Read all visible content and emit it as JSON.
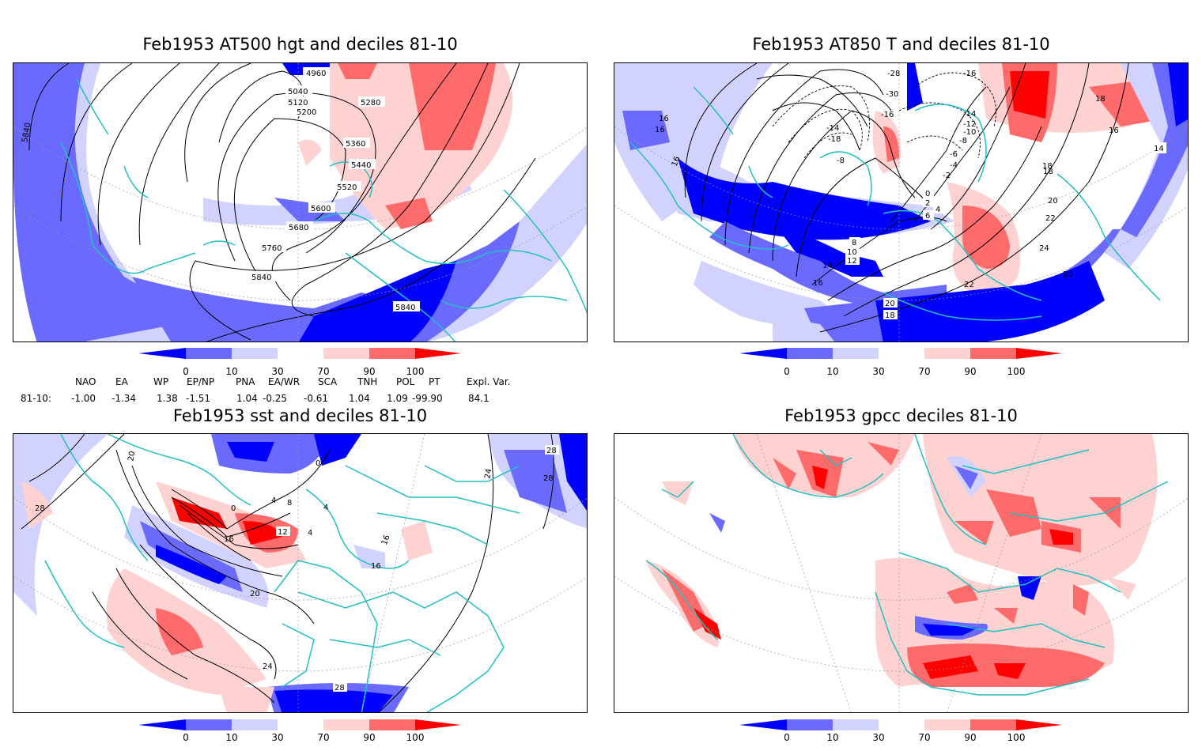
{
  "panels": [
    {
      "title": "Feb1953 AT500 hgt and deciles 81-10",
      "contour_labels": [
        "4960",
        "5040",
        "5120",
        "5200",
        "5280",
        "5360",
        "5440",
        "5520",
        "5600",
        "5680",
        "5760",
        "5840",
        "5840",
        "5840"
      ]
    },
    {
      "title": "Feb1953 AT850 T and deciles 81-10",
      "contour_labels": [
        "-28",
        "-30",
        "-16",
        "-16",
        "-14",
        "-14",
        "-18",
        "-12",
        "-10",
        "-8",
        "-6",
        "-4",
        "-2",
        "-8",
        "0",
        "2",
        "4",
        "6",
        "8",
        "10",
        "12",
        "14",
        "16",
        "16",
        "16",
        "16",
        "14",
        "18",
        "18",
        "16",
        "18",
        "20",
        "22",
        "24",
        "22",
        "20",
        "20",
        "18"
      ]
    },
    {
      "title": "Feb1953 sst and deciles 81-10",
      "contour_labels": [
        "20",
        "28",
        "0",
        "4",
        "8",
        "12",
        "16",
        "20",
        "24",
        "28",
        "24",
        "28",
        "16",
        "16",
        "28",
        "4",
        "4",
        "0"
      ]
    },
    {
      "title": "Feb1953 gpcc deciles 81-10",
      "contour_labels": []
    }
  ],
  "colorbar": {
    "labels": [
      "0",
      "10",
      "30",
      "70",
      "90",
      "100"
    ],
    "colors": [
      "#0000ff",
      "#6a6aff",
      "#d2d2ff",
      "#ffffff",
      "#ffd2d2",
      "#ff6a6a",
      "#ff0000"
    ]
  },
  "indices": {
    "header": [
      "NAO",
      "EA",
      "WP",
      "EP/NP",
      "PNA",
      "EA/WR",
      "SCA",
      "TNH",
      "POL",
      "PT",
      "Expl. Var."
    ],
    "row_label": "81-10:",
    "values": [
      "-1.00",
      "-1.34",
      "1.38",
      "-1.51",
      "1.04",
      "-0.25",
      "-0.61",
      "1.04",
      "1.09",
      "-99.90",
      "84.1"
    ]
  },
  "colors": {
    "coast": "#20c0c0",
    "strong_blue": "#0000ff",
    "mid_blue": "#6a6aff",
    "light_blue": "#d2d2ff",
    "light_red": "#ffd2d2",
    "mid_red": "#ff6a6a",
    "strong_red": "#ff0000"
  }
}
